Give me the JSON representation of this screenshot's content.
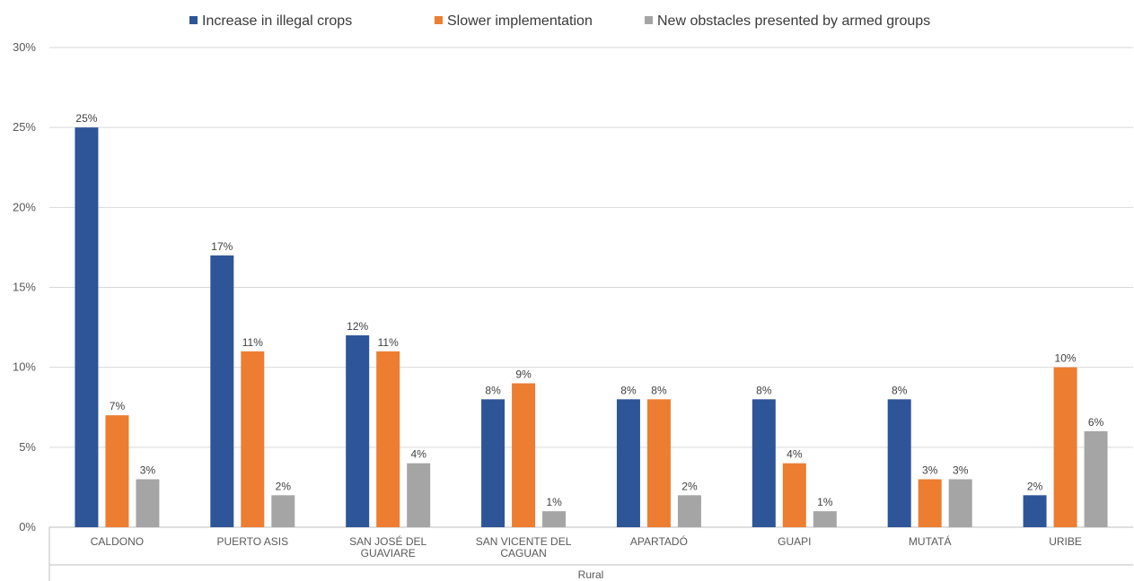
{
  "chart_data": {
    "type": "bar",
    "title": "",
    "xlabel": "",
    "ylabel": "",
    "group_label": "Rural",
    "ylim": [
      0,
      30
    ],
    "y_ticks": [
      "0%",
      "5%",
      "10%",
      "15%",
      "20%",
      "25%",
      "30%"
    ],
    "grid": true,
    "legend_position": "top",
    "categories": [
      [
        "CALDONO"
      ],
      [
        "PUERTO ASIS"
      ],
      [
        "SAN JOSÉ DEL",
        "GUAVIARE"
      ],
      [
        "SAN VICENTE DEL",
        "CAGUAN"
      ],
      [
        "APARTADÓ"
      ],
      [
        "GUAPI"
      ],
      [
        "MUTATÁ"
      ],
      [
        "URIBE"
      ]
    ],
    "series": [
      {
        "name": "Increase in illegal crops",
        "color": "#2e5597",
        "values": [
          25,
          17,
          12,
          8,
          8,
          8,
          8,
          2
        ],
        "labels": [
          "25%",
          "17%",
          "12%",
          "8%",
          "8%",
          "8%",
          "8%",
          "2%"
        ]
      },
      {
        "name": "Slower implementation",
        "color": "#ed7d31",
        "values": [
          7,
          11,
          11,
          9,
          8,
          4,
          3,
          10
        ],
        "labels": [
          "7%",
          "11%",
          "11%",
          "9%",
          "8%",
          "4%",
          "3%",
          "10%"
        ]
      },
      {
        "name": "New obstacles presented by armed groups",
        "color": "#a5a5a5",
        "values": [
          3,
          2,
          4,
          1,
          2,
          1,
          3,
          6
        ],
        "labels": [
          "3%",
          "2%",
          "4%",
          "1%",
          "2%",
          "1%",
          "3%",
          "6%"
        ]
      }
    ]
  }
}
